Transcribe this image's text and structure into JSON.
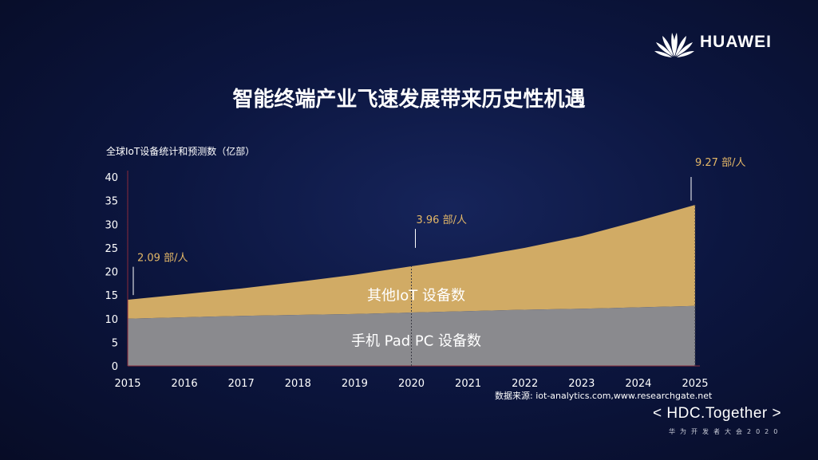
{
  "brand": {
    "logo_icon": "huawei-petal-logo",
    "name": "HUAWEI"
  },
  "title": "智能终端产业飞速发展带来历史性机遇",
  "footer": {
    "source": "数据来源: iot-analytics.com,www.researchgate.net",
    "event": "< HDC.Together >",
    "event_sub": "华为开发者大会2020"
  },
  "colors": {
    "other_iot": "#d1ab65",
    "phone_pad_pc": "#8a8a8e",
    "annotation_text": "#e3b767"
  },
  "chart_data": {
    "type": "area",
    "stacked": true,
    "ylabel": "全球IoT设备统计和预测数（亿部）",
    "ylim": [
      0,
      40
    ],
    "yticks": [
      0,
      5,
      10,
      15,
      20,
      25,
      30,
      35,
      40
    ],
    "x": [
      "2015",
      "2016",
      "2017",
      "2018",
      "2019",
      "2020",
      "2021",
      "2022",
      "2023",
      "2024",
      "2025"
    ],
    "series": [
      {
        "name": "手机 Pad PC 设备数",
        "values": [
          10.0,
          10.3,
          10.6,
          10.8,
          11.0,
          11.3,
          11.6,
          11.9,
          12.1,
          12.4,
          12.7
        ]
      },
      {
        "name": "其他IoT 设备数",
        "values": [
          4.0,
          4.9,
          5.8,
          7.0,
          8.3,
          9.8,
          11.3,
          13.1,
          15.4,
          18.3,
          21.4
        ]
      }
    ],
    "annotations": [
      {
        "x": "2015",
        "text": "2.09 部/人",
        "line_from": 15,
        "line_to": 21
      },
      {
        "x": "2020",
        "text": "3.96 部/人",
        "line_from": 25,
        "line_to": 29
      },
      {
        "x": "2025",
        "text": "9.27 部/人",
        "line_from": 35,
        "line_to": 40
      }
    ]
  }
}
